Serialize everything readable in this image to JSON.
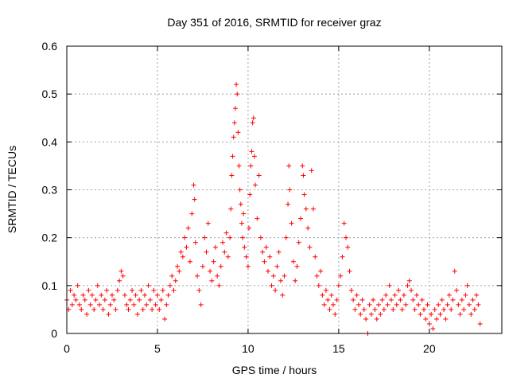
{
  "chart_data": {
    "type": "scatter",
    "title": "Day 351 of 2016, SRMTID for receiver graz",
    "xlabel": "GPS time / hours",
    "ylabel": "SRMTID / TECUs",
    "xlim": [
      0,
      24
    ],
    "ylim": [
      0,
      0.6
    ],
    "xticks": [
      0,
      5,
      10,
      15,
      20
    ],
    "xtick_labels": [
      "0",
      "5",
      "10",
      "15",
      "20"
    ],
    "yticks": [
      0,
      0.1,
      0.2,
      0.3,
      0.4,
      0.5,
      0.6
    ],
    "ytick_labels": [
      "0",
      "0.1",
      "0.2",
      "0.3",
      "0.4",
      "0.5",
      "0.6"
    ],
    "grid": true,
    "marker": "plus",
    "series_color": "#ff0000",
    "series": [
      {
        "name": "SRMTID",
        "points": [
          [
            0.0,
            0.07
          ],
          [
            0.1,
            0.05
          ],
          [
            0.2,
            0.09
          ],
          [
            0.3,
            0.06
          ],
          [
            0.4,
            0.08
          ],
          [
            0.5,
            0.07
          ],
          [
            0.6,
            0.1
          ],
          [
            0.7,
            0.06
          ],
          [
            0.8,
            0.05
          ],
          [
            0.9,
            0.08
          ],
          [
            1.0,
            0.07
          ],
          [
            1.1,
            0.04
          ],
          [
            1.2,
            0.09
          ],
          [
            1.3,
            0.06
          ],
          [
            1.4,
            0.08
          ],
          [
            1.5,
            0.05
          ],
          [
            1.6,
            0.07
          ],
          [
            1.7,
            0.1
          ],
          [
            1.8,
            0.06
          ],
          [
            1.9,
            0.08
          ],
          [
            2.0,
            0.05
          ],
          [
            2.1,
            0.07
          ],
          [
            2.2,
            0.09
          ],
          [
            2.3,
            0.04
          ],
          [
            2.4,
            0.06
          ],
          [
            2.5,
            0.08
          ],
          [
            2.6,
            0.07
          ],
          [
            2.7,
            0.05
          ],
          [
            2.8,
            0.09
          ],
          [
            2.9,
            0.11
          ],
          [
            3.0,
            0.13
          ],
          [
            3.1,
            0.12
          ],
          [
            3.2,
            0.08
          ],
          [
            3.3,
            0.06
          ],
          [
            3.4,
            0.05
          ],
          [
            3.5,
            0.07
          ],
          [
            3.6,
            0.09
          ],
          [
            3.7,
            0.06
          ],
          [
            3.8,
            0.08
          ],
          [
            3.9,
            0.04
          ],
          [
            4.0,
            0.07
          ],
          [
            4.1,
            0.09
          ],
          [
            4.2,
            0.05
          ],
          [
            4.3,
            0.08
          ],
          [
            4.4,
            0.06
          ],
          [
            4.5,
            0.1
          ],
          [
            4.6,
            0.07
          ],
          [
            4.7,
            0.05
          ],
          [
            4.8,
            0.09
          ],
          [
            4.9,
            0.06
          ],
          [
            5.0,
            0.08
          ],
          [
            5.1,
            0.05
          ],
          [
            5.2,
            0.07
          ],
          [
            5.3,
            0.09
          ],
          [
            5.4,
            0.03
          ],
          [
            5.5,
            0.06
          ],
          [
            5.6,
            0.08
          ],
          [
            5.7,
            0.1
          ],
          [
            5.8,
            0.12
          ],
          [
            5.9,
            0.09
          ],
          [
            6.0,
            0.11
          ],
          [
            6.1,
            0.14
          ],
          [
            6.2,
            0.13
          ],
          [
            6.3,
            0.17
          ],
          [
            6.4,
            0.16
          ],
          [
            6.5,
            0.2
          ],
          [
            6.6,
            0.18
          ],
          [
            6.7,
            0.22
          ],
          [
            6.8,
            0.15
          ],
          [
            6.9,
            0.25
          ],
          [
            7.0,
            0.31
          ],
          [
            7.05,
            0.28
          ],
          [
            7.1,
            0.19
          ],
          [
            7.2,
            0.12
          ],
          [
            7.3,
            0.09
          ],
          [
            7.4,
            0.06
          ],
          [
            7.5,
            0.14
          ],
          [
            7.6,
            0.2
          ],
          [
            7.7,
            0.17
          ],
          [
            7.8,
            0.23
          ],
          [
            7.9,
            0.13
          ],
          [
            8.0,
            0.11
          ],
          [
            8.1,
            0.15
          ],
          [
            8.2,
            0.18
          ],
          [
            8.3,
            0.12
          ],
          [
            8.4,
            0.1
          ],
          [
            8.5,
            0.14
          ],
          [
            8.6,
            0.19
          ],
          [
            8.7,
            0.17
          ],
          [
            8.8,
            0.21
          ],
          [
            8.9,
            0.16
          ],
          [
            9.0,
            0.2
          ],
          [
            9.05,
            0.26
          ],
          [
            9.1,
            0.33
          ],
          [
            9.15,
            0.37
          ],
          [
            9.2,
            0.41
          ],
          [
            9.25,
            0.44
          ],
          [
            9.3,
            0.47
          ],
          [
            9.35,
            0.52
          ],
          [
            9.4,
            0.5
          ],
          [
            9.45,
            0.42
          ],
          [
            9.5,
            0.35
          ],
          [
            9.55,
            0.3
          ],
          [
            9.6,
            0.27
          ],
          [
            9.65,
            0.23
          ],
          [
            9.7,
            0.2
          ],
          [
            9.75,
            0.25
          ],
          [
            9.8,
            0.18
          ],
          [
            9.9,
            0.16
          ],
          [
            10.0,
            0.14
          ],
          [
            10.05,
            0.22
          ],
          [
            10.1,
            0.29
          ],
          [
            10.15,
            0.35
          ],
          [
            10.2,
            0.38
          ],
          [
            10.25,
            0.44
          ],
          [
            10.3,
            0.45
          ],
          [
            10.35,
            0.37
          ],
          [
            10.4,
            0.31
          ],
          [
            10.5,
            0.24
          ],
          [
            10.6,
            0.33
          ],
          [
            10.7,
            0.2
          ],
          [
            10.8,
            0.17
          ],
          [
            10.9,
            0.15
          ],
          [
            11.0,
            0.18
          ],
          [
            11.1,
            0.13
          ],
          [
            11.2,
            0.16
          ],
          [
            11.3,
            0.1
          ],
          [
            11.4,
            0.12
          ],
          [
            11.5,
            0.09
          ],
          [
            11.6,
            0.14
          ],
          [
            11.7,
            0.17
          ],
          [
            11.8,
            0.11
          ],
          [
            11.9,
            0.08
          ],
          [
            12.0,
            0.12
          ],
          [
            12.1,
            0.2
          ],
          [
            12.2,
            0.27
          ],
          [
            12.25,
            0.35
          ],
          [
            12.3,
            0.3
          ],
          [
            12.4,
            0.23
          ],
          [
            12.5,
            0.15
          ],
          [
            12.6,
            0.11
          ],
          [
            12.7,
            0.14
          ],
          [
            12.8,
            0.19
          ],
          [
            12.9,
            0.24
          ],
          [
            13.0,
            0.35
          ],
          [
            13.05,
            0.33
          ],
          [
            13.1,
            0.29
          ],
          [
            13.2,
            0.26
          ],
          [
            13.3,
            0.22
          ],
          [
            13.4,
            0.18
          ],
          [
            13.5,
            0.34
          ],
          [
            13.6,
            0.26
          ],
          [
            13.7,
            0.16
          ],
          [
            13.8,
            0.12
          ],
          [
            13.9,
            0.1
          ],
          [
            14.0,
            0.13
          ],
          [
            14.1,
            0.08
          ],
          [
            14.2,
            0.06
          ],
          [
            14.3,
            0.09
          ],
          [
            14.4,
            0.07
          ],
          [
            14.5,
            0.05
          ],
          [
            14.6,
            0.08
          ],
          [
            14.7,
            0.06
          ],
          [
            14.8,
            0.04
          ],
          [
            14.9,
            0.07
          ],
          [
            15.0,
            0.1
          ],
          [
            15.1,
            0.12
          ],
          [
            15.2,
            0.16
          ],
          [
            15.3,
            0.23
          ],
          [
            15.4,
            0.2
          ],
          [
            15.5,
            0.18
          ],
          [
            15.6,
            0.13
          ],
          [
            15.7,
            0.09
          ],
          [
            15.8,
            0.07
          ],
          [
            15.9,
            0.05
          ],
          [
            16.0,
            0.08
          ],
          [
            16.1,
            0.06
          ],
          [
            16.2,
            0.04
          ],
          [
            16.3,
            0.07
          ],
          [
            16.4,
            0.05
          ],
          [
            16.5,
            0.03
          ],
          [
            16.6,
            0.0
          ],
          [
            16.7,
            0.06
          ],
          [
            16.8,
            0.04
          ],
          [
            16.9,
            0.07
          ],
          [
            17.0,
            0.05
          ],
          [
            17.1,
            0.03
          ],
          [
            17.2,
            0.06
          ],
          [
            17.3,
            0.04
          ],
          [
            17.4,
            0.07
          ],
          [
            17.5,
            0.05
          ],
          [
            17.6,
            0.08
          ],
          [
            17.7,
            0.06
          ],
          [
            17.8,
            0.1
          ],
          [
            17.9,
            0.07
          ],
          [
            18.0,
            0.05
          ],
          [
            18.1,
            0.08
          ],
          [
            18.2,
            0.06
          ],
          [
            18.3,
            0.09
          ],
          [
            18.4,
            0.07
          ],
          [
            18.5,
            0.05
          ],
          [
            18.6,
            0.08
          ],
          [
            18.7,
            0.06
          ],
          [
            18.8,
            0.1
          ],
          [
            18.9,
            0.11
          ],
          [
            19.0,
            0.09
          ],
          [
            19.1,
            0.07
          ],
          [
            19.2,
            0.05
          ],
          [
            19.3,
            0.08
          ],
          [
            19.4,
            0.06
          ],
          [
            19.5,
            0.04
          ],
          [
            19.6,
            0.07
          ],
          [
            19.7,
            0.05
          ],
          [
            19.8,
            0.03
          ],
          [
            19.9,
            0.06
          ],
          [
            20.0,
            0.02
          ],
          [
            20.1,
            0.04
          ],
          [
            20.2,
            0.01
          ],
          [
            20.3,
            0.05
          ],
          [
            20.4,
            0.03
          ],
          [
            20.5,
            0.06
          ],
          [
            20.6,
            0.04
          ],
          [
            20.7,
            0.07
          ],
          [
            20.8,
            0.05
          ],
          [
            20.9,
            0.03
          ],
          [
            21.0,
            0.06
          ],
          [
            21.1,
            0.08
          ],
          [
            21.2,
            0.05
          ],
          [
            21.3,
            0.07
          ],
          [
            21.4,
            0.13
          ],
          [
            21.5,
            0.09
          ],
          [
            21.6,
            0.06
          ],
          [
            21.7,
            0.04
          ],
          [
            21.8,
            0.07
          ],
          [
            21.9,
            0.05
          ],
          [
            22.0,
            0.08
          ],
          [
            22.1,
            0.1
          ],
          [
            22.2,
            0.06
          ],
          [
            22.3,
            0.04
          ],
          [
            22.4,
            0.07
          ],
          [
            22.5,
            0.05
          ],
          [
            22.6,
            0.08
          ],
          [
            22.7,
            0.06
          ],
          [
            22.8,
            0.02
          ]
        ]
      }
    ]
  }
}
